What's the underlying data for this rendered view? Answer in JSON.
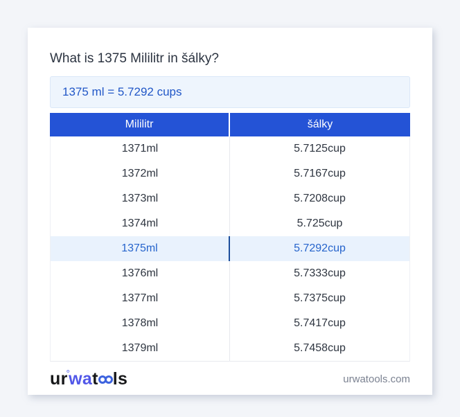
{
  "page": {
    "title": "What is 1375 Mililitr in šálky?",
    "result_text": "1375 ml = 5.7292 cups"
  },
  "table": {
    "headers": [
      "Mililitr",
      "šálky"
    ],
    "rows": [
      {
        "ml": "1371ml",
        "cup": "5.7125cup"
      },
      {
        "ml": "1372ml",
        "cup": "5.7167cup"
      },
      {
        "ml": "1373ml",
        "cup": "5.7208cup"
      },
      {
        "ml": "1374ml",
        "cup": "5.725cup"
      },
      {
        "ml": "1375ml",
        "cup": "5.7292cup"
      },
      {
        "ml": "1376ml",
        "cup": "5.7333cup"
      },
      {
        "ml": "1377ml",
        "cup": "5.7375cup"
      },
      {
        "ml": "1378ml",
        "cup": "5.7417cup"
      },
      {
        "ml": "1379ml",
        "cup": "5.7458cup"
      }
    ],
    "highlighted_row_index": 4
  },
  "footer": {
    "logo": {
      "seg1": "ur",
      "ring": "°",
      "seg2": "wa",
      "seg3": "t",
      "seg4": "ls"
    },
    "site": "urwatools.com"
  },
  "colors": {
    "page_background": "#f3f5f9",
    "card_background": "#ffffff",
    "header_blue": "#2453d6",
    "highlight_background": "#e9f2fd",
    "highlight_text": "#2664cc",
    "highlight_divider": "#1d4e9c",
    "result_background": "#eef5fd",
    "result_text": "#2157c7",
    "logo_blue": "#5157e8",
    "logo_circle_blue": "#3d63de"
  }
}
